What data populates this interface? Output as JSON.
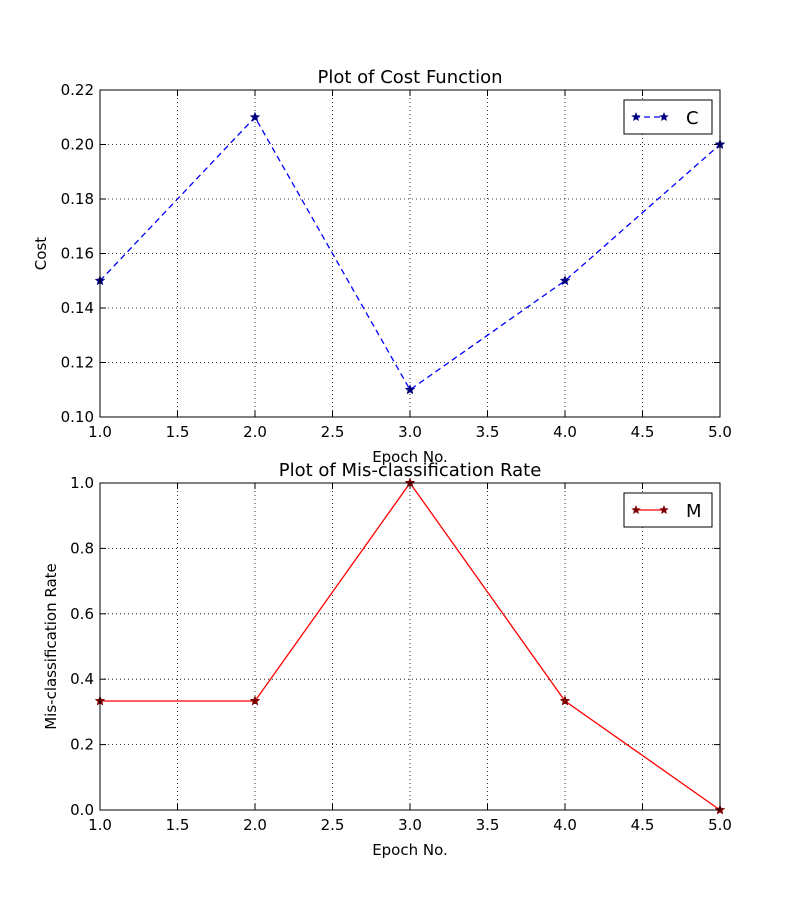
{
  "chart_data": [
    {
      "type": "line",
      "title": "Plot of Cost Function",
      "xlabel": "Epoch No.",
      "ylabel": "Cost",
      "xlim": [
        1.0,
        5.0
      ],
      "ylim": [
        0.1,
        0.22
      ],
      "xticks": [
        "1.0",
        "1.5",
        "2.0",
        "2.5",
        "3.0",
        "3.5",
        "4.0",
        "4.5",
        "5.0"
      ],
      "yticks": [
        "0.10",
        "0.12",
        "0.14",
        "0.16",
        "0.18",
        "0.20",
        "0.22"
      ],
      "grid": true,
      "legend_position": "top-right",
      "series": [
        {
          "name": "C",
          "x": [
            1,
            2,
            3,
            4,
            5
          ],
          "values": [
            0.15,
            0.21,
            0.11,
            0.15,
            0.2
          ],
          "color": "#0000ff",
          "line_style": "dashed",
          "marker": "star",
          "marker_color": "#00007f"
        }
      ]
    },
    {
      "type": "line",
      "title": "Plot of Mis-classification Rate",
      "xlabel": "Epoch No.",
      "ylabel": "Mis-classification Rate",
      "xlim": [
        1.0,
        5.0
      ],
      "ylim": [
        0.0,
        1.0
      ],
      "xticks": [
        "1.0",
        "1.5",
        "2.0",
        "2.5",
        "3.0",
        "3.5",
        "4.0",
        "4.5",
        "5.0"
      ],
      "yticks": [
        "0.0",
        "0.2",
        "0.4",
        "0.6",
        "0.8",
        "1.0"
      ],
      "grid": true,
      "legend_position": "top-right",
      "series": [
        {
          "name": "M",
          "x": [
            1,
            2,
            3,
            4,
            5
          ],
          "values": [
            0.3333,
            0.3333,
            1.0,
            0.3333,
            0.0
          ],
          "color": "#ff0000",
          "line_style": "solid",
          "marker": "star",
          "marker_color": "#7f0000"
        }
      ]
    }
  ]
}
